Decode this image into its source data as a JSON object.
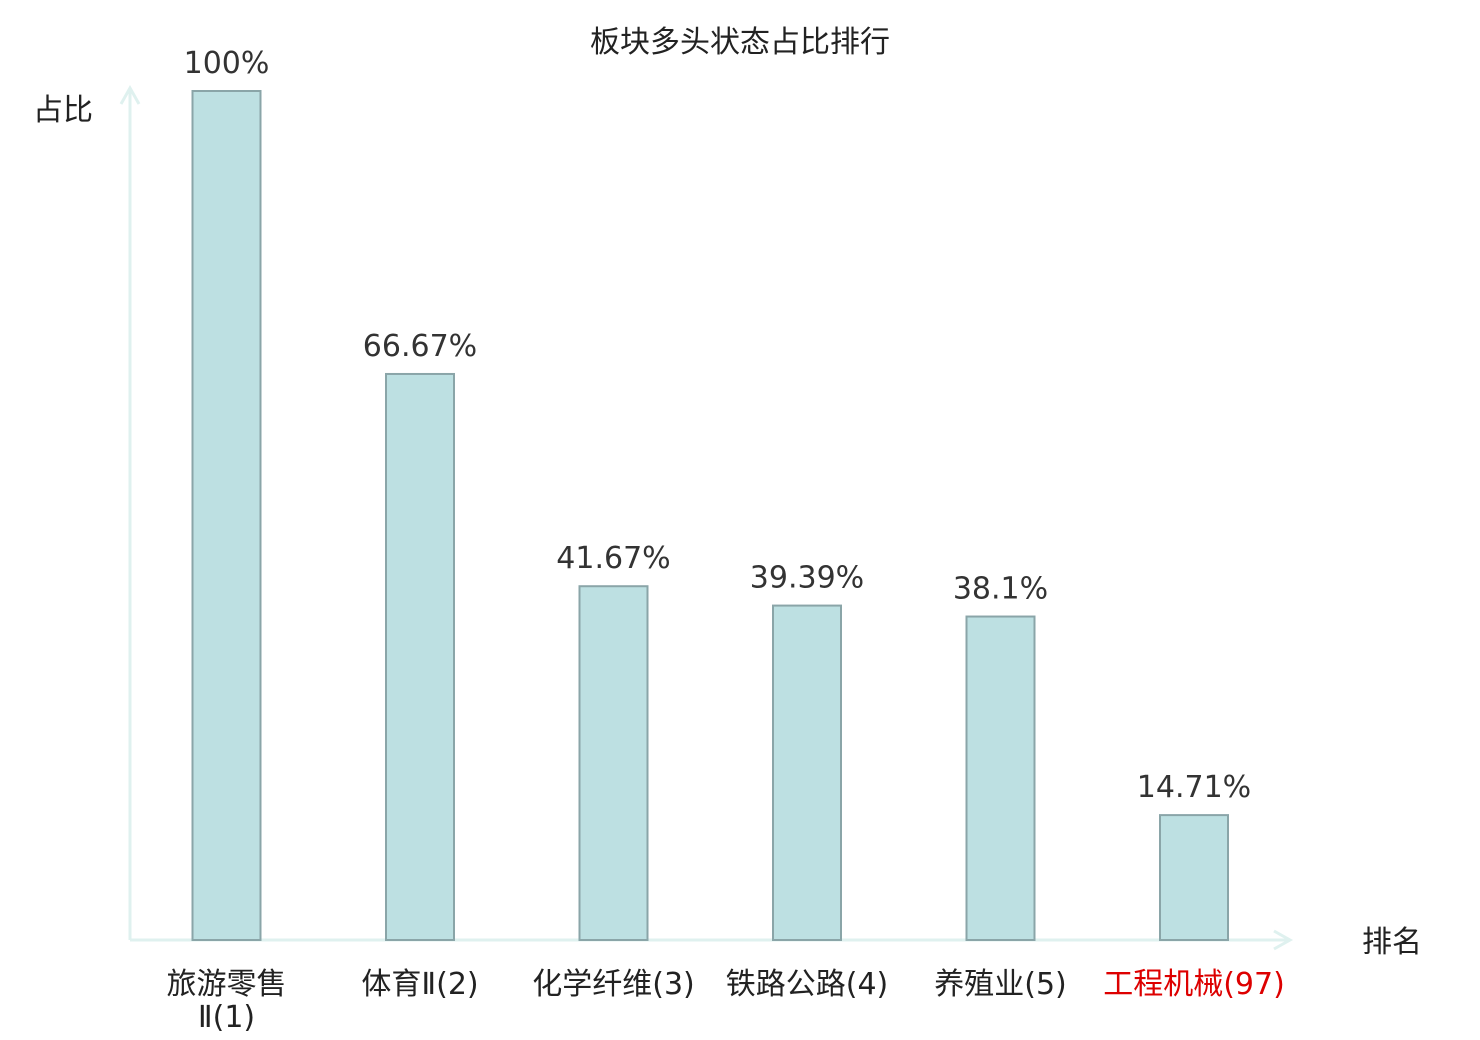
{
  "chart_data": {
    "type": "bar",
    "title": "板块多头状态占比排行",
    "xlabel": "排名",
    "ylabel": "占比",
    "categories": [
      "旅游零售Ⅱ(1)",
      "体育Ⅱ(2)",
      "化学纤维(3)",
      "铁路公路(4)",
      "养殖业(5)",
      "工程机械(97)"
    ],
    "values": [
      100,
      66.67,
      41.67,
      39.39,
      38.1,
      14.71
    ],
    "value_labels": [
      "100%",
      "66.67%",
      "41.67%",
      "39.39%",
      "38.1%",
      "14.71%"
    ],
    "ylim": [
      0,
      100
    ],
    "grid": false,
    "highlight_index": 5,
    "colors": {
      "bar_fill": "#bde0e2",
      "bar_stroke": "#8aa5a8",
      "axis": "#dff1ef",
      "text": "#222222",
      "value_text": "#333333",
      "highlight_text": "#dd0000"
    }
  }
}
